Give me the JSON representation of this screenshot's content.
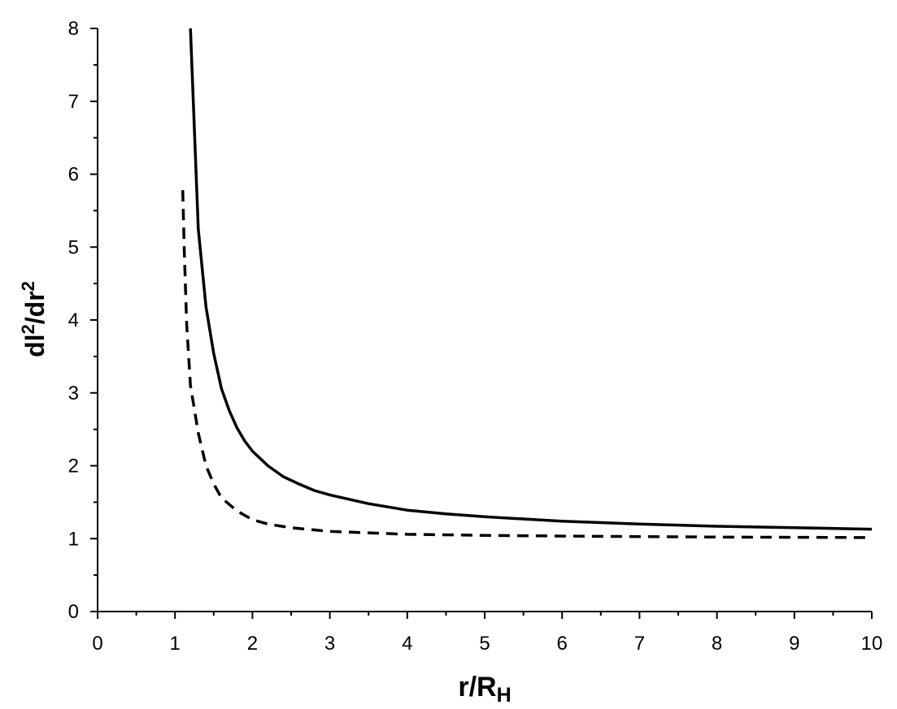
{
  "chart_data": {
    "type": "line",
    "title": "",
    "xlabel": {
      "main": "r/R",
      "sub": "H"
    },
    "ylabel": {
      "p1": "dl",
      "sup1": "2",
      "p2": "/dr",
      "sup2": "2"
    },
    "xlim": [
      0,
      10
    ],
    "ylim": [
      0,
      8
    ],
    "xticks": [
      0,
      1,
      2,
      3,
      4,
      5,
      6,
      7,
      8,
      9,
      10
    ],
    "yticks": [
      0,
      1,
      2,
      3,
      4,
      5,
      6,
      7,
      8
    ],
    "grid": false,
    "series": [
      {
        "style": "solid",
        "color": "#000000",
        "points": [
          [
            1.2,
            8.0
          ],
          [
            1.22,
            7.45
          ],
          [
            1.3,
            5.25
          ],
          [
            1.4,
            4.18
          ],
          [
            1.5,
            3.54
          ],
          [
            1.6,
            3.06
          ],
          [
            1.7,
            2.76
          ],
          [
            1.8,
            2.52
          ],
          [
            1.9,
            2.34
          ],
          [
            2.0,
            2.2
          ],
          [
            2.2,
            2.0
          ],
          [
            2.4,
            1.85
          ],
          [
            2.6,
            1.75
          ],
          [
            2.8,
            1.66
          ],
          [
            3.0,
            1.6
          ],
          [
            3.5,
            1.48
          ],
          [
            4.0,
            1.39
          ],
          [
            4.5,
            1.34
          ],
          [
            5.0,
            1.3
          ],
          [
            5.5,
            1.27
          ],
          [
            6.0,
            1.24
          ],
          [
            7.0,
            1.2
          ],
          [
            8.0,
            1.17
          ],
          [
            9.0,
            1.15
          ],
          [
            10.0,
            1.13
          ]
        ]
      },
      {
        "style": "dashed",
        "color": "#000000",
        "points": [
          [
            1.1,
            5.78
          ],
          [
            1.12,
            4.95
          ],
          [
            1.15,
            3.95
          ],
          [
            1.2,
            3.1
          ],
          [
            1.3,
            2.45
          ],
          [
            1.4,
            2.0
          ],
          [
            1.5,
            1.75
          ],
          [
            1.6,
            1.56
          ],
          [
            1.8,
            1.38
          ],
          [
            2.0,
            1.26
          ],
          [
            2.2,
            1.2
          ],
          [
            2.5,
            1.15
          ],
          [
            3.0,
            1.1
          ],
          [
            3.5,
            1.08
          ],
          [
            4.0,
            1.06
          ],
          [
            5.0,
            1.045
          ],
          [
            6.0,
            1.035
          ],
          [
            7.0,
            1.028
          ],
          [
            8.0,
            1.022
          ],
          [
            9.0,
            1.018
          ],
          [
            10.0,
            1.015
          ]
        ]
      }
    ]
  }
}
